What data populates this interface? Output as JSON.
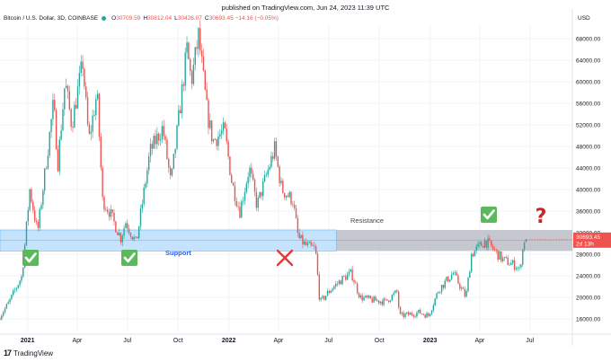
{
  "header": {
    "published": "published on TradingView.com, Jun 24, 2023 11:39 UTC"
  },
  "legend": {
    "symbol": "Bitcoin / U.S. Dollar, 3D, COINBASE",
    "open_label": "O",
    "open": "30709.59",
    "high_label": "H",
    "high": "30812.04",
    "low_label": "L",
    "low": "30426.07",
    "close_label": "C",
    "close": "30693.45",
    "change": "−14.16 (−0.05%)"
  },
  "axis": {
    "currency": "USD"
  },
  "price_badge": {
    "price": "30693.45",
    "countdown": "2d 13h"
  },
  "annotations": {
    "resistance": "Resistance",
    "support": "Support",
    "question": "?"
  },
  "colors": {
    "up": "#26a69a",
    "down": "#ef5350",
    "support_zone": "#bbdefb",
    "resistance_zone": "#b2b5be",
    "check_bg": "#5cb85c",
    "cross": "#e53935",
    "question": "#c62828",
    "support_text": "#2962ff"
  },
  "footer": {
    "brand": "TradingView"
  },
  "chart_data": {
    "type": "candlestick",
    "title": "",
    "xlabel": "",
    "ylabel": "",
    "y_ticks": [
      16000,
      20000,
      24000,
      28000,
      32000,
      36000,
      40000,
      44000,
      48000,
      52000,
      56000,
      60000,
      64000,
      68000
    ],
    "y_tick_labels": [
      "16000.00",
      "20000.00",
      "24000.00",
      "28000.00",
      "32000.00",
      "36000.00",
      "40000.00",
      "44000.00",
      "48000.00",
      "52000.00",
      "56000.00",
      "60000.00",
      "64000.00",
      "68000.00"
    ],
    "ylim": [
      13500,
      70500
    ],
    "x_labels": [
      {
        "label": "2021",
        "date": "2021-01-01"
      },
      {
        "label": "Apr",
        "date": "2021-04-01"
      },
      {
        "label": "Jul",
        "date": "2021-07-01"
      },
      {
        "label": "Oct",
        "date": "2021-10-01"
      },
      {
        "label": "2022",
        "date": "2022-01-01"
      },
      {
        "label": "Apr",
        "date": "2022-04-01"
      },
      {
        "label": "Jul",
        "date": "2022-07-01"
      },
      {
        "label": "Oct",
        "date": "2022-10-01"
      },
      {
        "label": "2023",
        "date": "2023-01-01"
      },
      {
        "label": "Apr",
        "date": "2023-04-01"
      },
      {
        "label": "Jul",
        "date": "2023-07-01"
      }
    ],
    "xlim": [
      "2020-11-12",
      "2023-09-16"
    ],
    "interval_days": 3,
    "price_path": [
      [
        "2020-11-12",
        16000
      ],
      [
        "2020-12-01",
        19000
      ],
      [
        "2020-12-25",
        24000
      ],
      [
        "2021-01-08",
        40000
      ],
      [
        "2021-01-22",
        32000
      ],
      [
        "2021-02-20",
        56000
      ],
      [
        "2021-02-28",
        45000
      ],
      [
        "2021-03-13",
        60000
      ],
      [
        "2021-03-25",
        52000
      ],
      [
        "2021-04-14",
        63500
      ],
      [
        "2021-04-25",
        49000
      ],
      [
        "2021-05-10",
        58000
      ],
      [
        "2021-05-20",
        38000
      ],
      [
        "2021-06-01",
        36000
      ],
      [
        "2021-06-22",
        31000
      ],
      [
        "2021-07-01",
        34000
      ],
      [
        "2021-07-20",
        30000
      ],
      [
        "2021-08-14",
        47000
      ],
      [
        "2021-09-06",
        51500
      ],
      [
        "2021-09-21",
        41000
      ],
      [
        "2021-10-20",
        66000
      ],
      [
        "2021-10-28",
        60000
      ],
      [
        "2021-11-10",
        68500
      ],
      [
        "2021-11-26",
        54000
      ],
      [
        "2021-12-06",
        49000
      ],
      [
        "2021-12-27",
        51000
      ],
      [
        "2022-01-10",
        41000
      ],
      [
        "2022-01-24",
        36000
      ],
      [
        "2022-02-10",
        44000
      ],
      [
        "2022-02-24",
        37000
      ],
      [
        "2022-03-28",
        47500
      ],
      [
        "2022-04-10",
        40000
      ],
      [
        "2022-04-30",
        38000
      ],
      [
        "2022-05-10",
        31000
      ],
      [
        "2022-05-25",
        29500
      ],
      [
        "2022-06-10",
        29000
      ],
      [
        "2022-06-18",
        19000
      ],
      [
        "2022-07-08",
        21500
      ],
      [
        "2022-07-30",
        23500
      ],
      [
        "2022-08-14",
        24500
      ],
      [
        "2022-08-30",
        20000
      ],
      [
        "2022-09-20",
        19500
      ],
      [
        "2022-10-15",
        19200
      ],
      [
        "2022-11-05",
        21000
      ],
      [
        "2022-11-10",
        16500
      ],
      [
        "2022-12-15",
        17200
      ],
      [
        "2023-01-01",
        16600
      ],
      [
        "2023-01-20",
        21500
      ],
      [
        "2023-02-15",
        24500
      ],
      [
        "2023-03-10",
        20000
      ],
      [
        "2023-03-20",
        28000
      ],
      [
        "2023-04-14",
        30500
      ],
      [
        "2023-04-28",
        29000
      ],
      [
        "2023-05-15",
        27000
      ],
      [
        "2023-06-10",
        25800
      ],
      [
        "2023-06-15",
        25000
      ],
      [
        "2023-06-24",
        30693
      ]
    ],
    "last_candle": {
      "date": "2023-06-24",
      "open": 30709.59,
      "high": 30812.04,
      "low": 30426.07,
      "close": 30693.45
    },
    "zones": [
      {
        "name": "support",
        "from": "2020-11-12",
        "to": "2022-07-15",
        "low": 28600,
        "high": 32500
      },
      {
        "name": "resistance",
        "from": "2022-07-15",
        "to": "2023-09-16",
        "low": 28600,
        "high": 32500
      }
    ]
  }
}
